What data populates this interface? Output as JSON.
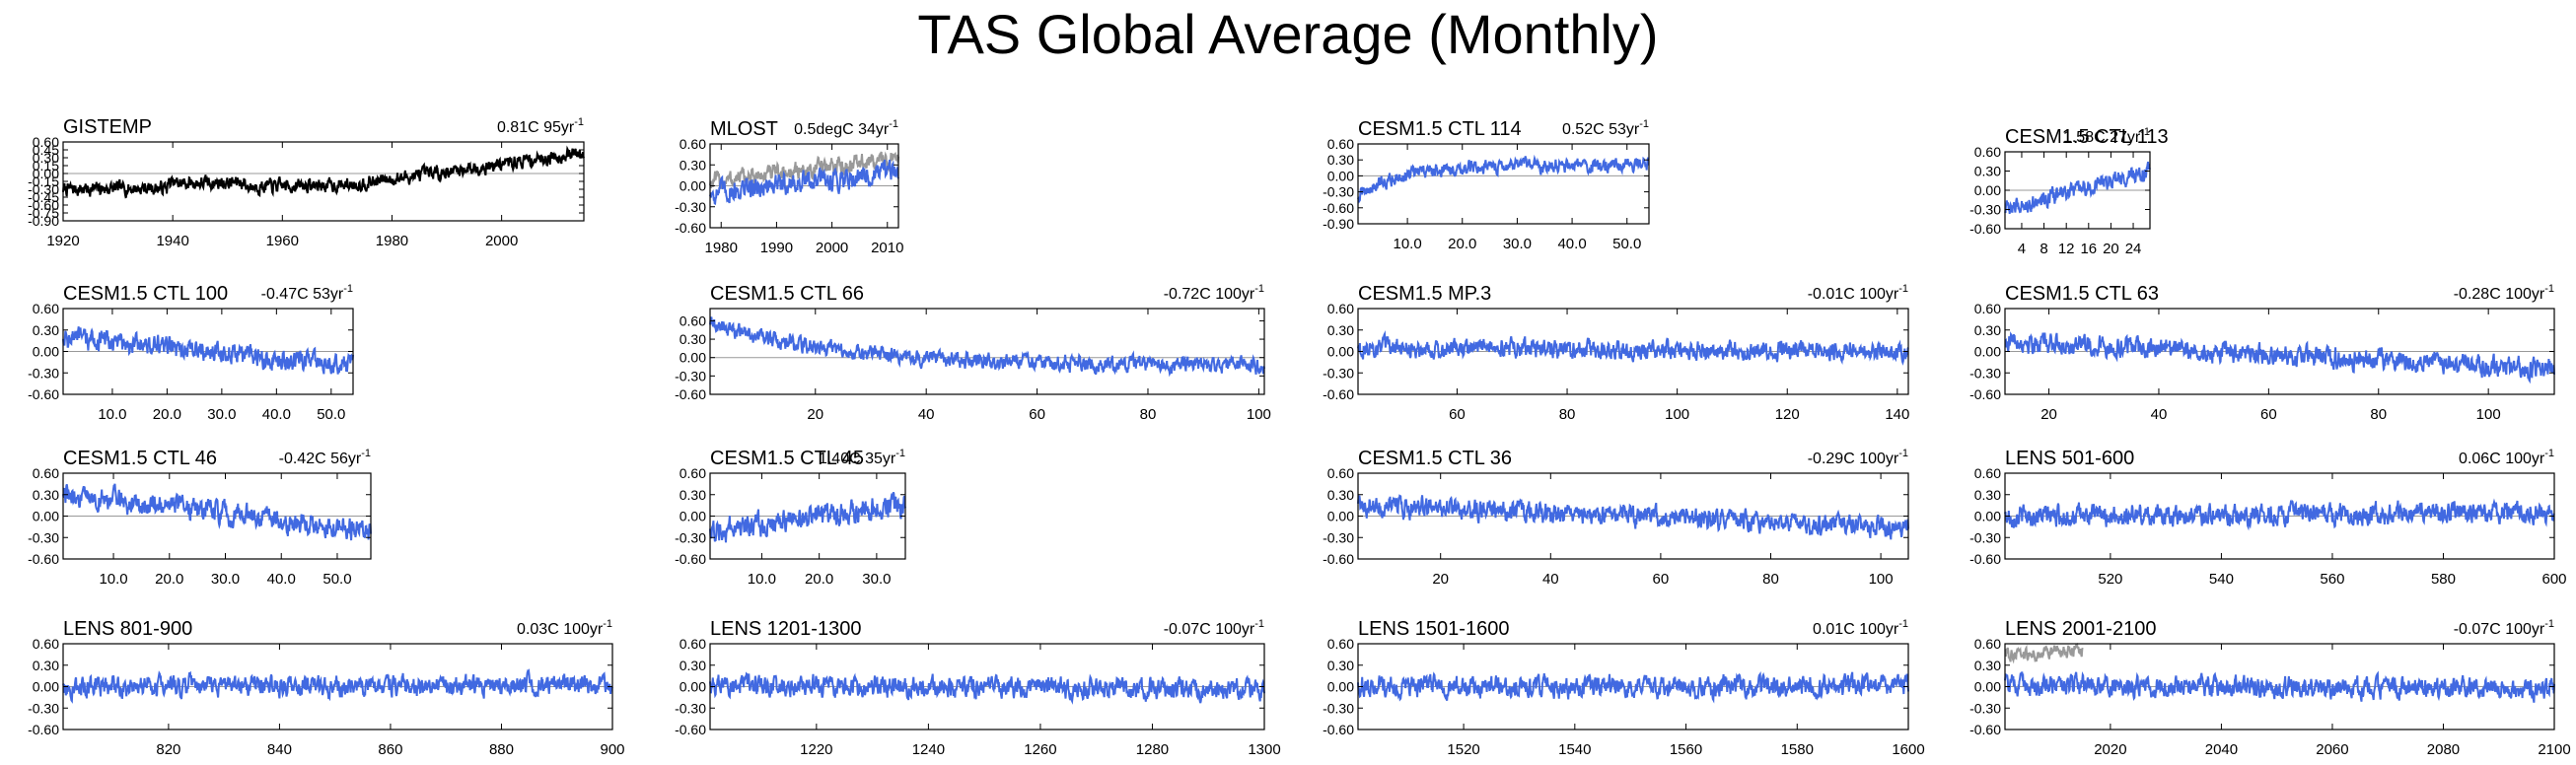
{
  "title": "TAS Global Average (Monthly)",
  "colors": {
    "model": "#4169e1",
    "obs": "#000000",
    "obs_overlay": "#999999",
    "zero_line": "#999999"
  },
  "chart_data": [
    {
      "type": "line",
      "panel": "GISTEMP",
      "trend": "0.81C 95yr",
      "trend_sup": "-1",
      "x_range": [
        1920,
        2015
      ],
      "xticks": [
        1920,
        1940,
        1960,
        1980,
        2000
      ],
      "ylim": [
        -0.9,
        0.6
      ],
      "yticks": [
        "0.60",
        "0.45",
        "0.30",
        "0.15",
        "0.00",
        "-0.15",
        "-0.30",
        "-0.45",
        "-0.60",
        "-0.75",
        "-0.90"
      ],
      "series": [
        {
          "color": "obs",
          "start": -0.4,
          "end": 0.4,
          "noise": 0.1,
          "shape": "gistemp"
        }
      ]
    },
    {
      "type": "line",
      "panel": "MLOST",
      "trend": "0.5degC 34yr",
      "trend_sup": "-1",
      "x_range": [
        1978,
        2012
      ],
      "xticks": [
        1980,
        1990,
        2000,
        2010
      ],
      "ylim": [
        -0.6,
        0.6
      ],
      "yticks": [
        "0.60",
        "0.30",
        "0.00",
        "-0.30",
        "-0.60"
      ],
      "series": [
        {
          "color": "obs_overlay",
          "start": 0.05,
          "end": 0.4,
          "noise": 0.1
        },
        {
          "color": "model",
          "start": -0.1,
          "end": 0.2,
          "noise": 0.12
        }
      ]
    },
    {
      "type": "line",
      "panel": "CESM1.5 CTL 114",
      "trend": "0.52C 53yr",
      "trend_sup": "-1",
      "x_range": [
        1,
        54
      ],
      "xticks": [
        10,
        20,
        30,
        40,
        50
      ],
      "xtick_labels": [
        "10.0",
        "20.0",
        "30.0",
        "40.0",
        "50.0"
      ],
      "ylim": [
        -0.9,
        0.6
      ],
      "yticks": [
        "0.60",
        "0.30",
        "0.00",
        "-0.30",
        "-0.60",
        "-0.90"
      ],
      "series": [
        {
          "color": "model",
          "start": -0.4,
          "end": 0.2,
          "noise": 0.1,
          "shape": "rise"
        }
      ]
    },
    {
      "type": "line",
      "panel": "CESM1.5 CTL 113",
      "trend": "1.58C 27yr",
      "trend_sup": "-1",
      "x_range": [
        1,
        27
      ],
      "xticks": [
        4,
        8,
        12,
        16,
        20,
        24
      ],
      "ylim": [
        -0.6,
        0.6
      ],
      "yticks": [
        "0.60",
        "0.30",
        "0.00",
        "-0.30",
        "-0.60"
      ],
      "series": [
        {
          "color": "model",
          "start": -0.3,
          "end": 0.3,
          "noise": 0.1
        }
      ]
    },
    {
      "type": "line",
      "panel": "CESM1.5 CTL 100",
      "trend": "-0.47C 53yr",
      "trend_sup": "-1",
      "x_range": [
        1,
        54
      ],
      "xticks": [
        10,
        20,
        30,
        40,
        50
      ],
      "xtick_labels": [
        "10.0",
        "20.0",
        "30.0",
        "40.0",
        "50.0"
      ],
      "ylim": [
        -0.6,
        0.6
      ],
      "yticks": [
        "0.60",
        "0.30",
        "0.00",
        "-0.30",
        "-0.60"
      ],
      "series": [
        {
          "color": "model",
          "start": 0.2,
          "end": -0.2,
          "noise": 0.11
        }
      ]
    },
    {
      "type": "line",
      "panel": "CESM1.5 CTL 66",
      "trend": "-0.72C 100yr",
      "trend_sup": "-1",
      "x_range": [
        1,
        101
      ],
      "xticks": [
        20,
        40,
        60,
        80,
        100
      ],
      "ylim": [
        -0.6,
        0.8
      ],
      "yticks": [
        "0.60",
        "0.30",
        "0.00",
        "-0.30",
        "-0.60"
      ],
      "series": [
        {
          "color": "model",
          "start": 0.55,
          "end": -0.15,
          "noise": 0.1,
          "shape": "decay"
        }
      ]
    },
    {
      "type": "line",
      "panel": "CESM1.5 MP.3",
      "trend": "-0.01C 100yr",
      "trend_sup": "-1",
      "x_range": [
        42,
        142
      ],
      "xticks": [
        60,
        80,
        100,
        120,
        140
      ],
      "ylim": [
        -0.6,
        0.6
      ],
      "yticks": [
        "0.60",
        "0.30",
        "0.00",
        "-0.30",
        "-0.60"
      ],
      "series": [
        {
          "color": "model",
          "start": 0.05,
          "end": 0.0,
          "noise": 0.1
        }
      ]
    },
    {
      "type": "line",
      "panel": "CESM1.5 CTL 63",
      "trend": "-0.28C 100yr",
      "trend_sup": "-1",
      "x_range": [
        12,
        112
      ],
      "xticks": [
        20,
        40,
        60,
        80,
        100
      ],
      "ylim": [
        -0.6,
        0.6
      ],
      "yticks": [
        "0.60",
        "0.30",
        "0.00",
        "-0.30",
        "-0.60"
      ],
      "series": [
        {
          "color": "model",
          "start": 0.15,
          "end": -0.25,
          "noise": 0.11
        }
      ]
    },
    {
      "type": "line",
      "panel": "CESM1.5 CTL 46",
      "trend": "-0.42C 56yr",
      "trend_sup": "-1",
      "x_range": [
        1,
        56
      ],
      "xticks": [
        10,
        20,
        30,
        40,
        50
      ],
      "xtick_labels": [
        "10.0",
        "20.0",
        "30.0",
        "40.0",
        "50.0"
      ],
      "ylim": [
        -0.6,
        0.6
      ],
      "yticks": [
        "0.60",
        "0.30",
        "0.00",
        "-0.30",
        "-0.60"
      ],
      "series": [
        {
          "color": "model",
          "start": 0.3,
          "end": -0.2,
          "noise": 0.12
        }
      ]
    },
    {
      "type": "line",
      "panel": "CESM1.5 CTL 45",
      "trend": "1.40C 35yr",
      "trend_sup": "-1",
      "x_range": [
        1,
        35
      ],
      "xticks": [
        10,
        20,
        30
      ],
      "xtick_labels": [
        "10.0",
        "20.0",
        "30.0"
      ],
      "ylim": [
        -0.6,
        0.6
      ],
      "yticks": [
        "0.60",
        "0.30",
        "0.00",
        "-0.30",
        "-0.60"
      ],
      "series": [
        {
          "color": "model",
          "start": -0.2,
          "end": 0.15,
          "noise": 0.13
        }
      ]
    },
    {
      "type": "line",
      "panel": "CESM1.5 CTL 36",
      "trend": "-0.29C 100yr",
      "trend_sup": "-1",
      "x_range": [
        5,
        105
      ],
      "xticks": [
        20,
        40,
        60,
        80,
        100
      ],
      "ylim": [
        -0.6,
        0.6
      ],
      "yticks": [
        "0.60",
        "0.30",
        "0.00",
        "-0.30",
        "-0.60"
      ],
      "series": [
        {
          "color": "model",
          "start": 0.15,
          "end": -0.15,
          "noise": 0.11
        }
      ]
    },
    {
      "type": "line",
      "panel": "LENS 501-600",
      "trend": "0.06C 100yr",
      "trend_sup": "-1",
      "x_range": [
        501,
        600
      ],
      "xticks": [
        520,
        540,
        560,
        580,
        600
      ],
      "ylim": [
        -0.6,
        0.6
      ],
      "yticks": [
        "0.60",
        "0.30",
        "0.00",
        "-0.30",
        "-0.60"
      ],
      "series": [
        {
          "color": "model",
          "start": 0.0,
          "end": 0.05,
          "noise": 0.11
        }
      ]
    },
    {
      "type": "line",
      "panel": "LENS 801-900",
      "trend": "0.03C 100yr",
      "trend_sup": "-1",
      "x_range": [
        801,
        900
      ],
      "xticks": [
        820,
        840,
        860,
        880,
        900
      ],
      "ylim": [
        -0.6,
        0.6
      ],
      "yticks": [
        "0.60",
        "0.30",
        "0.00",
        "-0.30",
        "-0.60"
      ],
      "series": [
        {
          "color": "model",
          "start": 0.0,
          "end": 0.02,
          "noise": 0.11
        }
      ]
    },
    {
      "type": "line",
      "panel": "LENS 1201-1300",
      "trend": "-0.07C 100yr",
      "trend_sup": "-1",
      "x_range": [
        1201,
        1300
      ],
      "xticks": [
        1220,
        1240,
        1260,
        1280,
        1300
      ],
      "ylim": [
        -0.6,
        0.6
      ],
      "yticks": [
        "0.60",
        "0.30",
        "0.00",
        "-0.30",
        "-0.60"
      ],
      "series": [
        {
          "color": "model",
          "start": 0.02,
          "end": -0.04,
          "noise": 0.11
        }
      ]
    },
    {
      "type": "line",
      "panel": "LENS 1501-1600",
      "trend": "0.01C 100yr",
      "trend_sup": "-1",
      "x_range": [
        1501,
        1600
      ],
      "xticks": [
        1520,
        1540,
        1560,
        1580,
        1600
      ],
      "ylim": [
        -0.6,
        0.6
      ],
      "yticks": [
        "0.60",
        "0.30",
        "0.00",
        "-0.30",
        "-0.60"
      ],
      "series": [
        {
          "color": "model",
          "start": 0.0,
          "end": 0.01,
          "noise": 0.11
        }
      ]
    },
    {
      "type": "line",
      "panel": "LENS 2001-2100",
      "trend": "-0.07C 100yr",
      "trend_sup": "-1",
      "x_range": [
        2001,
        2100
      ],
      "xticks": [
        2020,
        2040,
        2060,
        2080,
        2100
      ],
      "ylim": [
        -0.6,
        0.6
      ],
      "yticks": [
        "0.60",
        "0.30",
        "0.00",
        "-0.30",
        "-0.60"
      ],
      "series": [
        {
          "color": "model",
          "start": 0.02,
          "end": -0.04,
          "noise": 0.11
        },
        {
          "color": "obs_overlay",
          "start": 0.45,
          "end": 0.5,
          "noise": 0.07,
          "x_end": 2015
        }
      ]
    }
  ]
}
